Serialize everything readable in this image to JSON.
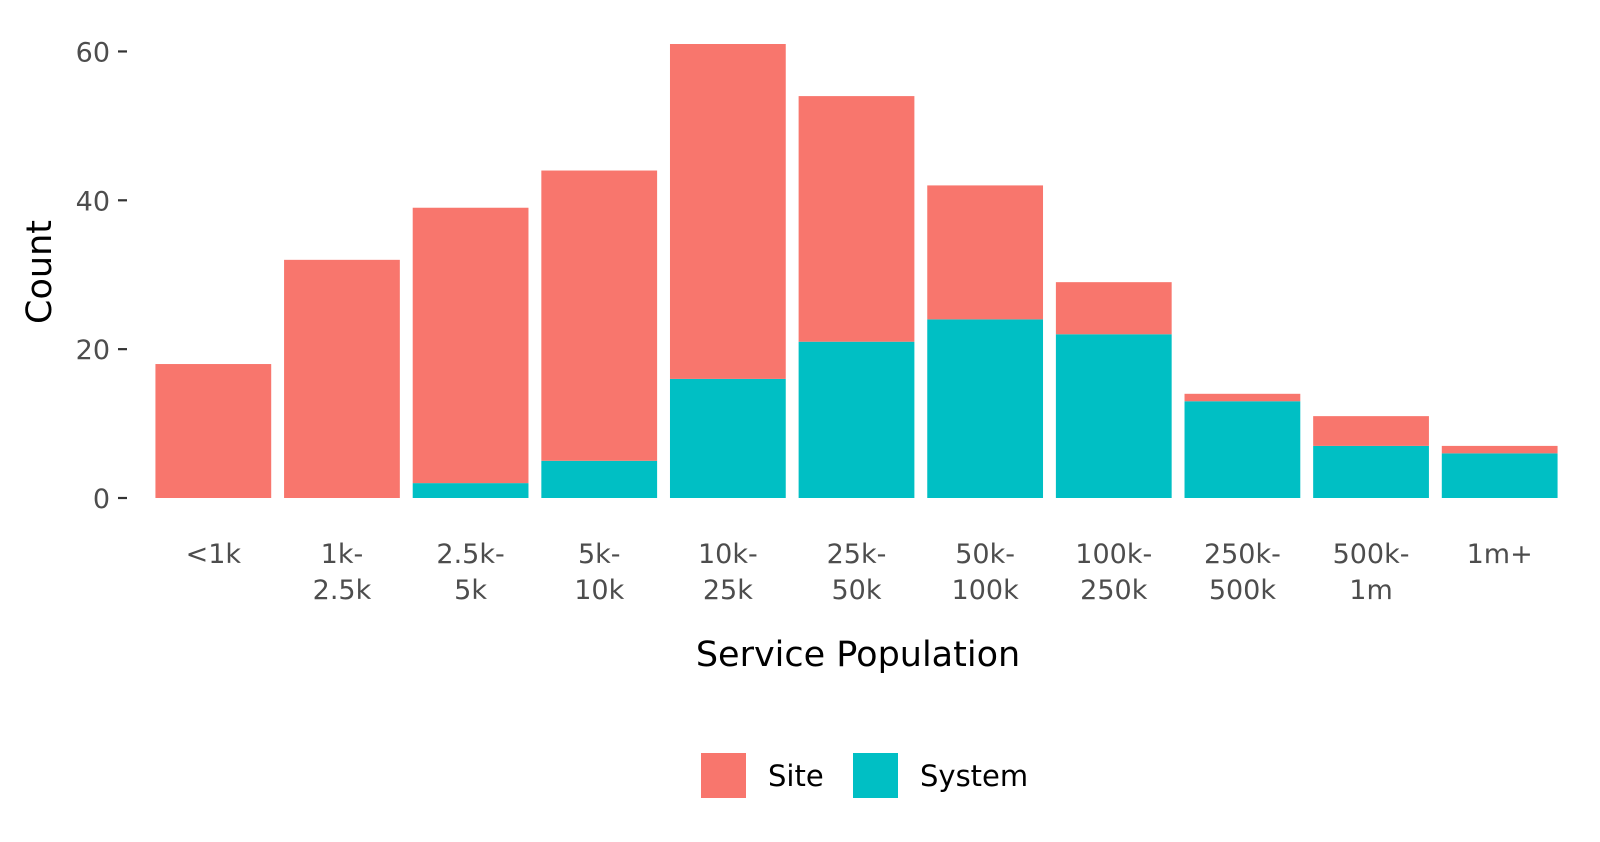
{
  "chart_data": {
    "type": "bar",
    "stacked": true,
    "xlabel": "Service Population",
    "ylabel": "Count",
    "ylim": [
      0,
      61
    ],
    "yticks": [
      0,
      20,
      40,
      60
    ],
    "categories": [
      [
        "<1k"
      ],
      [
        "1k-",
        "2.5k"
      ],
      [
        "2.5k-",
        "5k"
      ],
      [
        "5k-",
        "10k"
      ],
      [
        "10k-",
        "25k"
      ],
      [
        "25k-",
        "50k"
      ],
      [
        "50k-",
        "100k"
      ],
      [
        "100k-",
        "250k"
      ],
      [
        "250k-",
        "500k"
      ],
      [
        "500k-",
        "1m"
      ],
      [
        "1m+"
      ]
    ],
    "series": [
      {
        "name": "Site",
        "color": "#F8766D",
        "values": [
          18,
          32,
          37,
          39,
          45,
          33,
          18,
          7,
          1,
          4,
          1
        ]
      },
      {
        "name": "System",
        "color": "#00BFC4",
        "values": [
          0,
          0,
          2,
          5,
          16,
          21,
          24,
          22,
          13,
          7,
          6
        ]
      }
    ],
    "legend_position": "bottom",
    "grid": false
  }
}
